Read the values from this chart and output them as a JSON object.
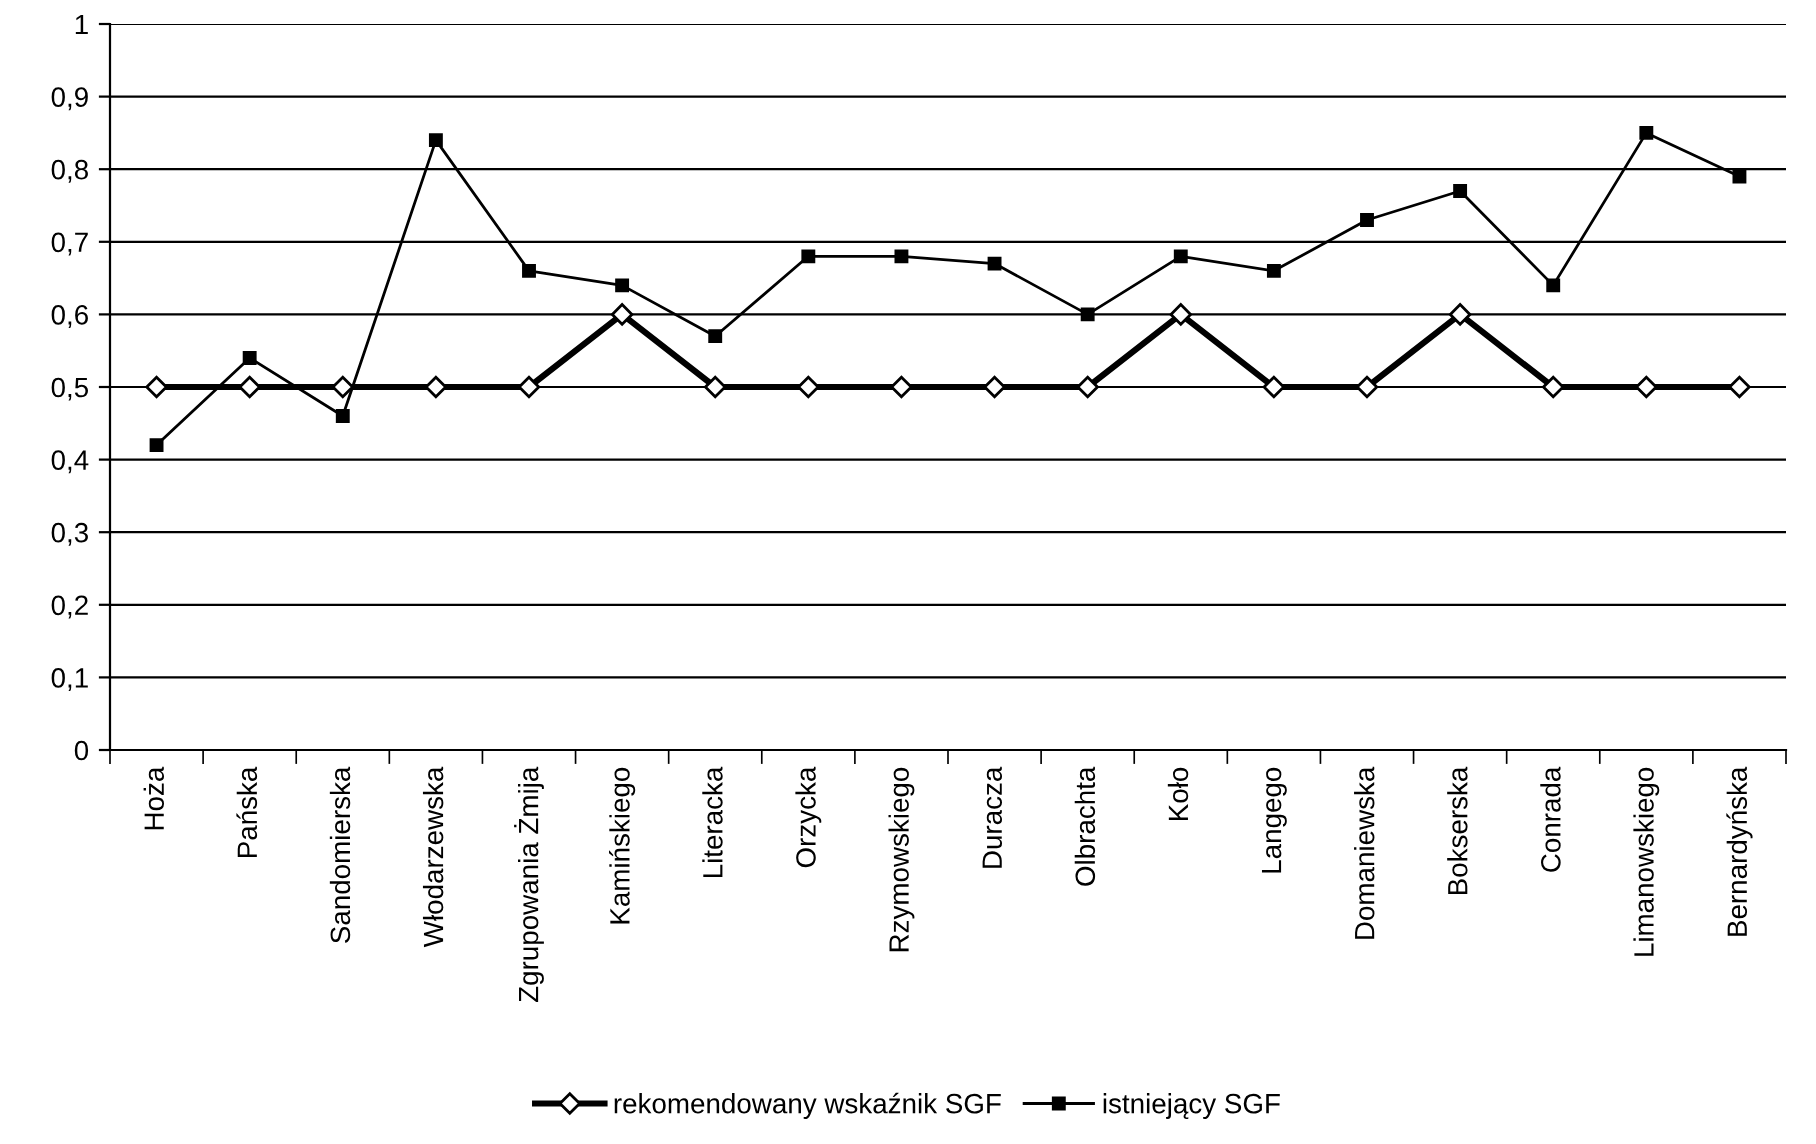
{
  "chart_data": {
    "type": "line",
    "categories": [
      "Hoża",
      "Pańska",
      "Sandomierska",
      "Włodarzewska",
      "Zgrupowania Żmija",
      "Kamińskiego",
      "Literacka",
      "Orzycka",
      "Rzymowskiego",
      "Duracza",
      "Olbrachta",
      "Koło",
      "Langego",
      "Domaniewska",
      "Bokserska",
      "Conrada",
      "Limanowskiego",
      "Bernardyńska"
    ],
    "series": [
      {
        "name": "rekomendowany wskaźnik SGF",
        "color": "#000000",
        "marker": "diamond",
        "values": [
          0.5,
          0.5,
          0.5,
          0.5,
          0.5,
          0.6,
          0.5,
          0.5,
          0.5,
          0.5,
          0.5,
          0.6,
          0.5,
          0.5,
          0.6,
          0.5,
          0.5,
          0.5
        ]
      },
      {
        "name": "istniejący SGF",
        "color": "#000000",
        "marker": "square",
        "values": [
          0.42,
          0.54,
          0.46,
          0.84,
          0.66,
          0.64,
          0.57,
          0.68,
          0.68,
          0.67,
          0.6,
          0.68,
          0.66,
          0.73,
          0.77,
          0.64,
          0.85,
          0.79
        ]
      }
    ],
    "ylim": [
      0,
      1
    ],
    "yticks": [
      0,
      {
        "value": 0.1,
        "label": "0,1"
      },
      {
        "value": 0.2,
        "label": "0,2"
      },
      {
        "value": 0.3,
        "label": "0,3"
      },
      {
        "value": 0.4,
        "label": "0,4"
      },
      {
        "value": 0.5,
        "label": "0,5"
      },
      {
        "value": 0.6,
        "label": "0,6"
      },
      {
        "value": 0.7,
        "label": "0,7"
      },
      {
        "value": 0.8,
        "label": "0,8"
      },
      {
        "value": 0.9,
        "label": "0,9"
      },
      1
    ],
    "grid": "y",
    "legend": "bottom"
  }
}
